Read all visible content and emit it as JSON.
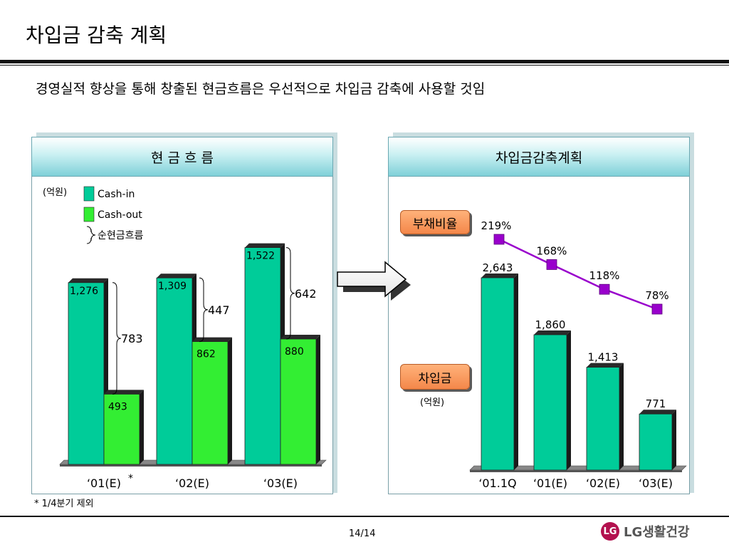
{
  "title": "차입금 감축 계획",
  "subtitle": "경영실적 향상을 통해 창출된 현금흐름은 우선적으로 차입금 감축에 사용할 것임",
  "left_panel": {
    "header": "현 금 흐 름",
    "unit": "(억원)",
    "legend": {
      "cash_in": "Cash-in",
      "cash_out": "Cash-out",
      "net": "순현금흐름"
    },
    "colors": {
      "cash_in": "#00cc99",
      "cash_out": "#33ee33",
      "brace": "#000000"
    }
  },
  "right_panel": {
    "header": "차입금감축계획",
    "debt_ratio_label": "부채비율",
    "borrowings_label": "차입금",
    "unit": "(억원)",
    "colors": {
      "bar": "#00cc99",
      "line": "#9900cc",
      "marker": "#9900cc"
    }
  },
  "chart_data": [
    {
      "type": "bar",
      "categories": [
        "‘01(E)",
        "‘02(E)",
        "‘03(E)"
      ],
      "category_note": [
        "*",
        "",
        ""
      ],
      "series": [
        {
          "name": "Cash-in",
          "values": [
            1276,
            1309,
            1522
          ],
          "labels": [
            "1,276",
            "1,309",
            "1,522"
          ]
        },
        {
          "name": "Cash-out",
          "values": [
            493,
            862,
            880
          ],
          "labels": [
            "493",
            "862",
            "880"
          ]
        }
      ],
      "net": {
        "name": "순현금흐름",
        "values": [
          783,
          447,
          642
        ],
        "labels": [
          "783",
          "447",
          "642"
        ]
      },
      "ylim": [
        0,
        1650
      ]
    },
    {
      "type": "bar",
      "categories": [
        "‘01.1Q",
        "‘01(E)",
        "‘02(E)",
        "‘03(E)"
      ],
      "series": [
        {
          "name": "차입금",
          "values": [
            2643,
            1860,
            1413,
            771
          ],
          "labels": [
            "2,643",
            "1,860",
            "1,413",
            "771"
          ]
        }
      ],
      "line": {
        "name": "부채비율",
        "values": [
          219,
          168,
          118,
          78
        ],
        "labels": [
          "219%",
          "168%",
          "118%",
          "78%"
        ]
      },
      "ylim": [
        0,
        3000
      ]
    }
  ],
  "footnote": "* 1/4분기 제외",
  "page_number": "14/14",
  "logo": {
    "mark": "LG",
    "text": "LG생활건강",
    "color": "#b3124f"
  }
}
